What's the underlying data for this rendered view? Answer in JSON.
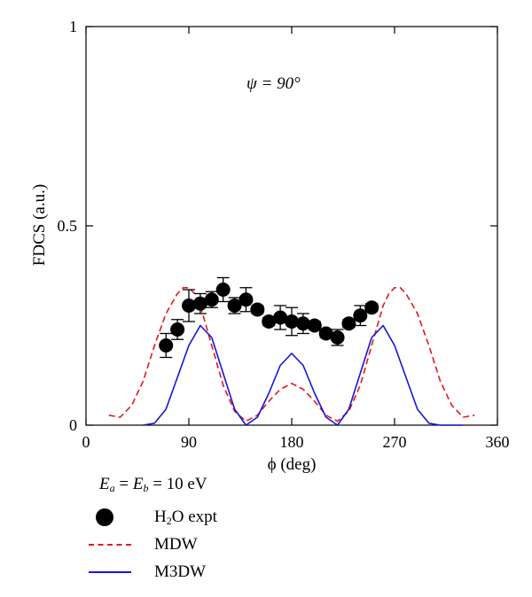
{
  "chart_data": {
    "type": "line",
    "xlabel": "ϕ (deg)",
    "ylabel": "FDCS (a.u.)",
    "xlim": [
      0,
      360
    ],
    "ylim": [
      0,
      1
    ],
    "xticks": [
      0,
      90,
      180,
      270,
      360
    ],
    "yticks": [
      0,
      0.5,
      1
    ],
    "xtick_labels": [
      "0",
      "90",
      "180",
      "270",
      "360"
    ],
    "ytick_labels": [
      "0",
      "0.5",
      "1"
    ],
    "annotation": "ψ = 90°",
    "grid": false,
    "legend_placement": "bottom-left, below plot",
    "legend_title": {
      "ea": "E",
      "ea_sub": "a",
      "eq1": " = ",
      "eb": "E",
      "eb_sub": "b",
      "eq2": " = 10 eV"
    },
    "series": [
      {
        "name": "H2O expt",
        "legend_label": {
          "pre": "H",
          "sub": "2",
          "post": "O expt"
        },
        "style": "markers",
        "color": "#000000",
        "x": [
          70,
          80,
          90,
          100,
          110,
          120,
          130,
          140,
          150,
          160,
          170,
          180,
          190,
          200,
          210,
          220,
          230,
          240,
          250
        ],
        "y": [
          0.2,
          0.24,
          0.3,
          0.305,
          0.315,
          0.34,
          0.3,
          0.315,
          0.29,
          0.26,
          0.27,
          0.26,
          0.255,
          0.25,
          0.23,
          0.22,
          0.255,
          0.275,
          0.295
        ],
        "err": [
          0.03,
          0.025,
          0.04,
          0.025,
          0.02,
          0.03,
          0.02,
          0.03,
          0.01,
          0.01,
          0.03,
          0.035,
          0.025,
          0.01,
          0.01,
          0.02,
          0.01,
          0.025,
          0.01
        ]
      },
      {
        "name": "MDW",
        "style": "dashed",
        "color": "#e4181c",
        "x": [
          20,
          30,
          40,
          50,
          60,
          70,
          80,
          85,
          90,
          95,
          100,
          110,
          120,
          130,
          140,
          150,
          160,
          170,
          180,
          190,
          200,
          210,
          220,
          230,
          240,
          250,
          260,
          265,
          270,
          275,
          280,
          290,
          300,
          310,
          320,
          330,
          340
        ],
        "y": [
          0.025,
          0.02,
          0.05,
          0.11,
          0.2,
          0.28,
          0.33,
          0.345,
          0.345,
          0.33,
          0.3,
          0.2,
          0.1,
          0.035,
          0.01,
          0.025,
          0.06,
          0.09,
          0.105,
          0.09,
          0.06,
          0.025,
          0.01,
          0.035,
          0.1,
          0.2,
          0.3,
          0.33,
          0.345,
          0.345,
          0.33,
          0.28,
          0.2,
          0.11,
          0.05,
          0.02,
          0.025
        ]
      },
      {
        "name": "M3DW",
        "style": "solid",
        "color": "#1515d6",
        "x": [
          50,
          60,
          70,
          80,
          90,
          100,
          110,
          120,
          130,
          140,
          150,
          160,
          170,
          180,
          190,
          200,
          210,
          220,
          230,
          240,
          250,
          260,
          270,
          280,
          290,
          300,
          310,
          320,
          330
        ],
        "y": [
          0.0,
          0.005,
          0.04,
          0.12,
          0.2,
          0.25,
          0.22,
          0.13,
          0.04,
          0.0,
          0.02,
          0.08,
          0.15,
          0.18,
          0.15,
          0.08,
          0.02,
          0.0,
          0.04,
          0.13,
          0.22,
          0.25,
          0.2,
          0.12,
          0.04,
          0.005,
          0.0,
          0.0,
          0.0
        ]
      }
    ]
  }
}
